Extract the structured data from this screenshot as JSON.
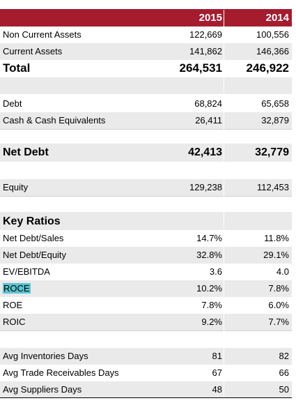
{
  "header": {
    "year1": "2015",
    "year2": "2014"
  },
  "rows": [
    {
      "label": "Non Current Assets",
      "v1": "122,669",
      "v2": "100,556"
    },
    {
      "label": "Current Assets",
      "v1": "141,862",
      "v2": "146,366"
    },
    {
      "label": "Total",
      "v1": "264,531",
      "v2": "246,922"
    },
    {
      "label": "Debt",
      "v1": "68,824",
      "v2": "65,658"
    },
    {
      "label": "Cash & Cash Equivalents",
      "v1": "26,411",
      "v2": "32,879"
    },
    {
      "label": "Net Debt",
      "v1": "42,413",
      "v2": "32,779"
    },
    {
      "label": "Equity",
      "v1": "129,238",
      "v2": "112,453"
    },
    {
      "label": "Key Ratios",
      "v1": "",
      "v2": ""
    },
    {
      "label": "Net Debt/Sales",
      "v1": "14.7%",
      "v2": "11.8%"
    },
    {
      "label": "Net Debt/Equity",
      "v1": "32.8%",
      "v2": "29.1%"
    },
    {
      "label": "EV/EBITDA",
      "v1": "3.6",
      "v2": "4.0"
    },
    {
      "label": "ROCE",
      "v1": "10.2%",
      "v2": "7.8%"
    },
    {
      "label": "ROE",
      "v1": "7.8%",
      "v2": "6.0%"
    },
    {
      "label": "ROIC",
      "v1": "9.2%",
      "v2": "7.7%"
    },
    {
      "label": "Avg Inventories Days",
      "v1": "81",
      "v2": "82"
    },
    {
      "label": "Avg Trade Receivables Days",
      "v1": "67",
      "v2": "66"
    },
    {
      "label": "Avg Suppliers Days",
      "v1": "48",
      "v2": "50"
    }
  ],
  "colors": {
    "header_bg": "#a61c2f",
    "row_shade": "#eaeaea",
    "highlight": "#5bc4cf"
  }
}
